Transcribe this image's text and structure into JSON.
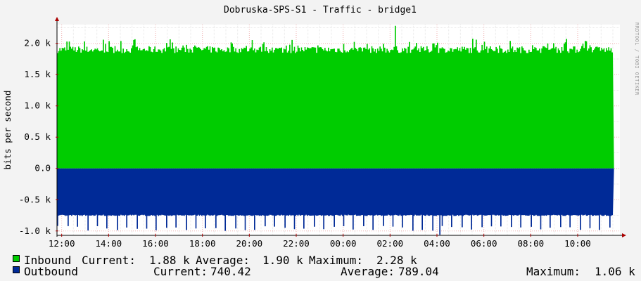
{
  "chart_data": {
    "type": "area",
    "title": "Dobruska-SPS-S1 - Traffic - bridge1",
    "ylabel": "bits per second",
    "watermark": "RRDTOOL / TOBI OETIKER",
    "x_tick_labels": [
      "12:00",
      "14:00",
      "16:00",
      "18:00",
      "20:00",
      "22:00",
      "00:00",
      "02:00",
      "04:00",
      "06:00",
      "08:00",
      "10:00"
    ],
    "x_range_hours": [
      11.8,
      35.8
    ],
    "y_tick_labels": [
      "2.0 k",
      "1.5 k",
      "1.0 k",
      "0.5 k",
      "0.0",
      "-0.5 k",
      "-1.0 k"
    ],
    "y_ticks": [
      2000,
      1500,
      1000,
      500,
      0,
      -500,
      -1000
    ],
    "ylim": [
      -1070,
      2300
    ],
    "grid": true,
    "series": [
      {
        "name": "Inbound",
        "color": "#00cc00",
        "typical": 1900,
        "peak": 2280,
        "peak_at_hour": 26.2,
        "current": "1.88 k",
        "average": "1.90 k",
        "maximum": "2.28 k"
      },
      {
        "name": "Outbound",
        "color": "#002a97",
        "typical": -740,
        "peak": -1060,
        "peak_at_hour": 28.1,
        "current": "740.42",
        "average": "789.04",
        "maximum": "1.06 k"
      }
    ]
  },
  "legend": {
    "current_label": "Current:",
    "average_label": "Average:",
    "maximum_label": "Maximum:"
  }
}
